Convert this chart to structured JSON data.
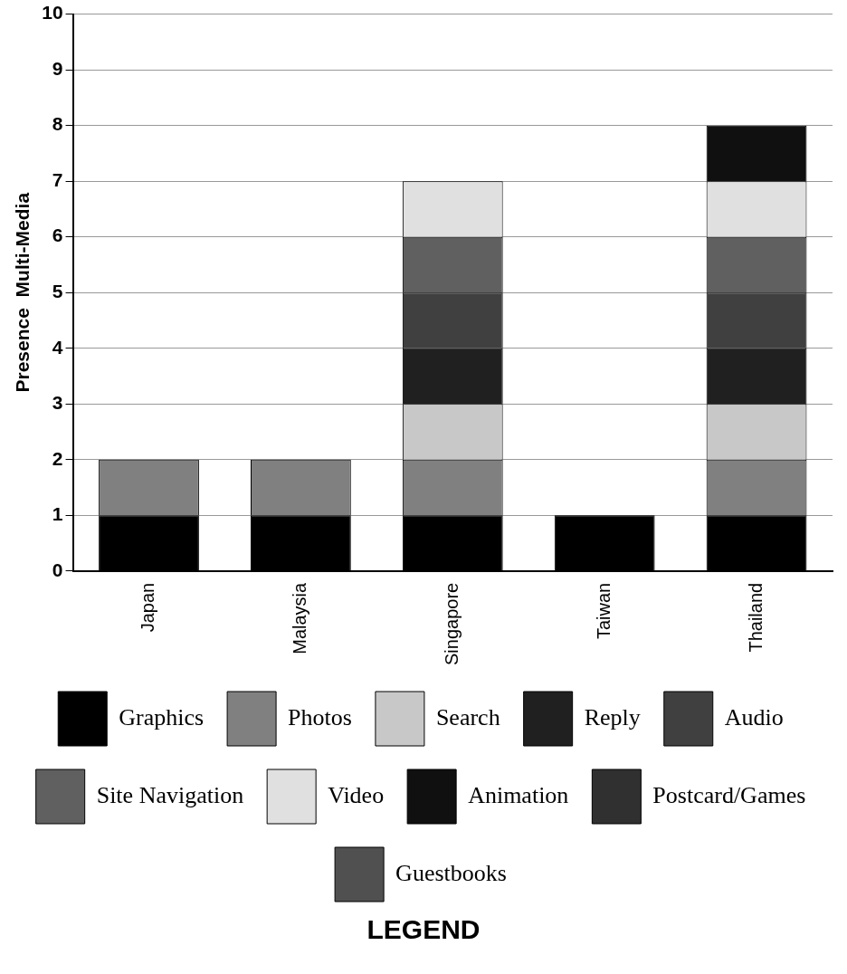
{
  "chart_data": {
    "type": "bar",
    "stacked": true,
    "ylabel": "Presence  Multi-Media",
    "legend_title": "LEGEND",
    "categories": [
      "Japan",
      "Malaysia",
      "Singapore",
      "Taiwan",
      "Thailand"
    ],
    "series": [
      {
        "name": "Graphics",
        "color": "#000000",
        "values": [
          1,
          1,
          1,
          1,
          1
        ]
      },
      {
        "name": "Photos",
        "color": "#808080",
        "values": [
          1,
          1,
          1,
          0,
          1
        ]
      },
      {
        "name": "Search",
        "color": "#c8c8c8",
        "values": [
          0,
          0,
          1,
          0,
          1
        ]
      },
      {
        "name": "Reply",
        "color": "#202020",
        "values": [
          0,
          0,
          1,
          0,
          1
        ]
      },
      {
        "name": "Audio",
        "color": "#404040",
        "values": [
          0,
          0,
          1,
          0,
          1
        ]
      },
      {
        "name": "Site Navigation",
        "color": "#606060",
        "values": [
          0,
          0,
          1,
          0,
          1
        ]
      },
      {
        "name": "Video",
        "color": "#e0e0e0",
        "values": [
          0,
          0,
          1,
          0,
          1
        ]
      },
      {
        "name": "Animation",
        "color": "#101010",
        "values": [
          0,
          0,
          0,
          0,
          1
        ]
      },
      {
        "name": "Postcard/Games",
        "color": "#303030",
        "values": [
          0,
          0,
          0,
          0,
          0
        ]
      },
      {
        "name": "Guestbooks",
        "color": "#505050",
        "values": [
          0,
          0,
          0,
          0,
          0
        ]
      }
    ],
    "ylim": [
      0,
      10
    ],
    "yticks": [
      0,
      1,
      2,
      3,
      4,
      5,
      6,
      7,
      8,
      9,
      10
    ],
    "grid": "y",
    "legend": "bottom"
  }
}
